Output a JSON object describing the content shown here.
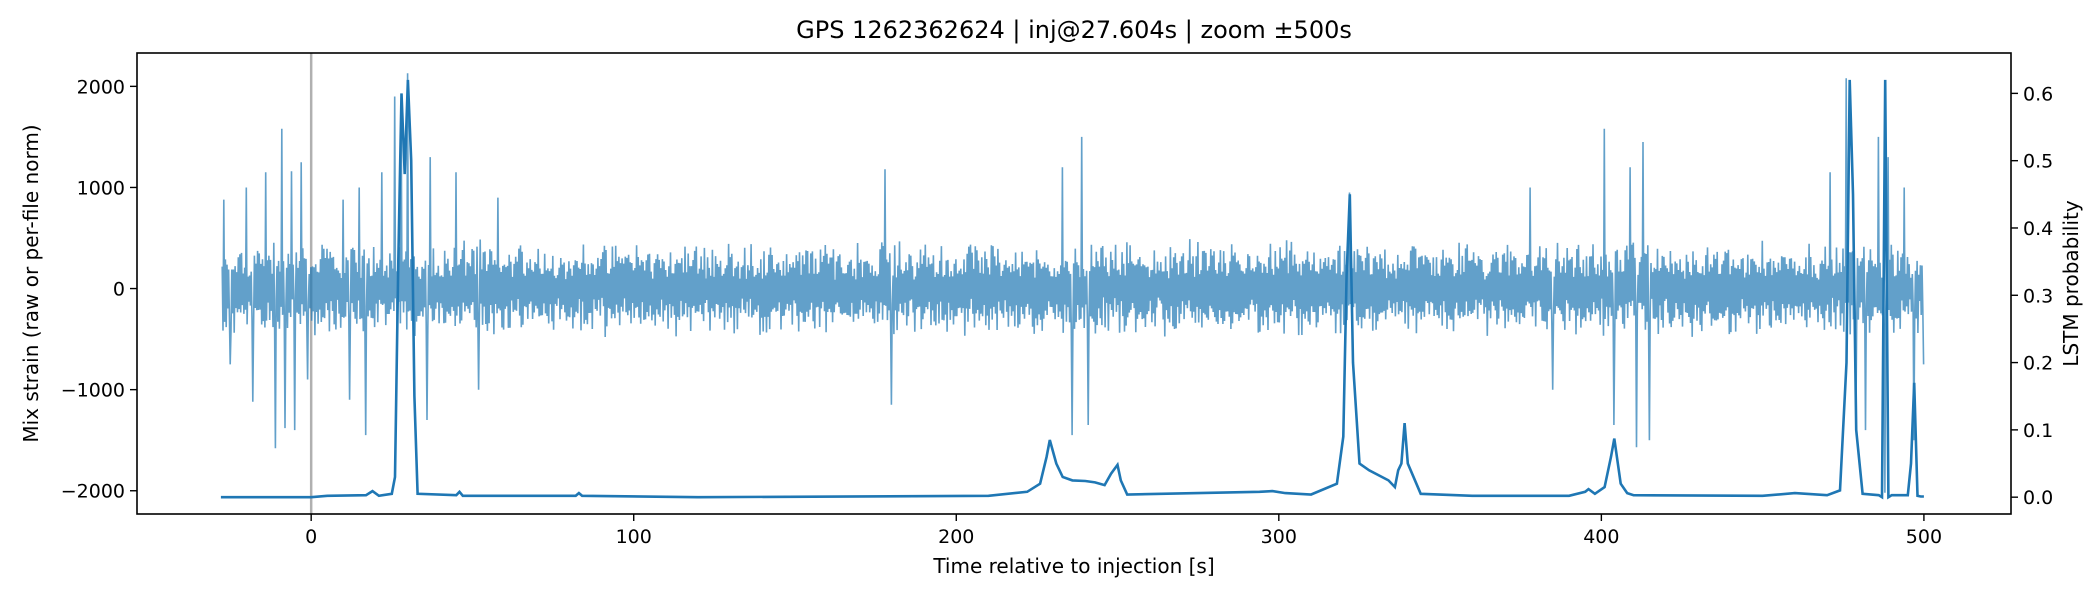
{
  "chart_data": {
    "type": "line",
    "title": "GPS 1262362624 | inj@27.604s | zoom ±500s",
    "xlabel": "Time relative to injection [s]",
    "ylabel_left": "Mix strain (raw or per-file norm)",
    "ylabel_right": "LSTM probability",
    "xlim": [
      -54,
      527
    ],
    "ylim_left": [
      -2230,
      2330
    ],
    "ylim_right": [
      -0.025,
      0.66
    ],
    "x_ticks": [
      0,
      100,
      200,
      300,
      400,
      500
    ],
    "x_tick_labels": [
      "0",
      "100",
      "200",
      "300",
      "400",
      "500"
    ],
    "y_left_ticks": [
      -2000,
      -1000,
      0,
      1000,
      2000
    ],
    "y_left_tick_labels": [
      "−2000",
      "−1000",
      "0",
      "1000",
      "2000"
    ],
    "y_right_ticks": [
      0.0,
      0.1,
      0.2,
      0.3,
      0.4,
      0.5,
      0.6
    ],
    "y_right_tick_labels": [
      "0.0",
      "0.1",
      "0.2",
      "0.3",
      "0.4",
      "0.5",
      "0.6"
    ],
    "grid": false,
    "legend": "none",
    "injection_marker_x": 0,
    "colors": {
      "strain": "#1f77b4",
      "probability": "#1f77b4",
      "marker": "#b0b0b0"
    },
    "series": [
      {
        "axis": "left",
        "style": "dense oscillating trace",
        "x_range": [
          -27.6,
          500
        ],
        "baseline_amplitude": 500,
        "spikes": [
          {
            "x": -27,
            "y": 880
          },
          {
            "x": -25,
            "y": -750
          },
          {
            "x": -20,
            "y": 1000
          },
          {
            "x": -18,
            "y": -1120
          },
          {
            "x": -14,
            "y": 1150
          },
          {
            "x": -11,
            "y": -1580
          },
          {
            "x": -9,
            "y": 1580
          },
          {
            "x": -8,
            "y": -1380
          },
          {
            "x": -6,
            "y": 1160
          },
          {
            "x": -5,
            "y": -1400
          },
          {
            "x": -3,
            "y": 1250
          },
          {
            "x": -1,
            "y": -900
          },
          {
            "x": 10,
            "y": 880
          },
          {
            "x": 12,
            "y": -1100
          },
          {
            "x": 15,
            "y": 1000
          },
          {
            "x": 17,
            "y": -1450
          },
          {
            "x": 22,
            "y": 1150
          },
          {
            "x": 26,
            "y": 1900
          },
          {
            "x": 28,
            "y": 1650
          },
          {
            "x": 30,
            "y": 2130
          },
          {
            "x": 36,
            "y": -1300
          },
          {
            "x": 37,
            "y": 1300
          },
          {
            "x": 45,
            "y": 1150
          },
          {
            "x": 52,
            "y": -1000
          },
          {
            "x": 58,
            "y": 900
          },
          {
            "x": 178,
            "y": 1180
          },
          {
            "x": 180,
            "y": -1150
          },
          {
            "x": 233,
            "y": 1200
          },
          {
            "x": 236,
            "y": -1450
          },
          {
            "x": 239,
            "y": 1500
          },
          {
            "x": 241,
            "y": -1350
          },
          {
            "x": 322,
            "y": 950
          },
          {
            "x": 378,
            "y": 1000
          },
          {
            "x": 385,
            "y": -1000
          },
          {
            "x": 401,
            "y": 1580
          },
          {
            "x": 404,
            "y": -1350
          },
          {
            "x": 409,
            "y": 1200
          },
          {
            "x": 411,
            "y": -1570
          },
          {
            "x": 413,
            "y": 1450
          },
          {
            "x": 415,
            "y": -1500
          },
          {
            "x": 471,
            "y": 1150
          },
          {
            "x": 476,
            "y": 2080
          },
          {
            "x": 479,
            "y": -1300
          },
          {
            "x": 482,
            "y": -1400
          },
          {
            "x": 486,
            "y": 1500
          },
          {
            "x": 488,
            "y": -2020
          },
          {
            "x": 489,
            "y": 1300
          },
          {
            "x": 494,
            "y": 1000
          },
          {
            "x": 497,
            "y": -1500
          },
          {
            "x": 500,
            "y": -750
          }
        ]
      },
      {
        "axis": "right",
        "style": "line",
        "x": [
          -28,
          0,
          5,
          17,
          19,
          21,
          25,
          26,
          27,
          28,
          29,
          30,
          31,
          32,
          33,
          45,
          46,
          47,
          82,
          83,
          84,
          120,
          210,
          222,
          226,
          228,
          229,
          231,
          233,
          236,
          240,
          243,
          246,
          248,
          250,
          251,
          253,
          294,
          298,
          302,
          310,
          318,
          320,
          321,
          322,
          323,
          325,
          328,
          332,
          334,
          336,
          337,
          338,
          339,
          340,
          344,
          360,
          390,
          395,
          396,
          398,
          401,
          403,
          404,
          406,
          408,
          410,
          450,
          460,
          470,
          474,
          476,
          477,
          478,
          479,
          481,
          486,
          487,
          488,
          489,
          490,
          495,
          496,
          497,
          498,
          499,
          500
        ],
        "y": [
          0.0,
          0.0,
          0.002,
          0.003,
          0.009,
          0.002,
          0.005,
          0.03,
          0.35,
          0.6,
          0.48,
          0.62,
          0.5,
          0.15,
          0.005,
          0.003,
          0.008,
          0.002,
          0.002,
          0.006,
          0.002,
          0.0,
          0.002,
          0.008,
          0.02,
          0.06,
          0.085,
          0.05,
          0.03,
          0.025,
          0.024,
          0.022,
          0.018,
          0.035,
          0.048,
          0.025,
          0.004,
          0.008,
          0.009,
          0.006,
          0.004,
          0.02,
          0.09,
          0.33,
          0.45,
          0.2,
          0.05,
          0.04,
          0.03,
          0.025,
          0.015,
          0.04,
          0.05,
          0.11,
          0.05,
          0.005,
          0.002,
          0.002,
          0.008,
          0.012,
          0.005,
          0.015,
          0.06,
          0.087,
          0.02,
          0.006,
          0.003,
          0.002,
          0.006,
          0.003,
          0.01,
          0.2,
          0.62,
          0.45,
          0.1,
          0.005,
          0.003,
          0.0,
          0.62,
          0.0,
          0.003,
          0.003,
          0.05,
          0.17,
          0.002,
          0.001,
          0.001
        ]
      }
    ]
  }
}
